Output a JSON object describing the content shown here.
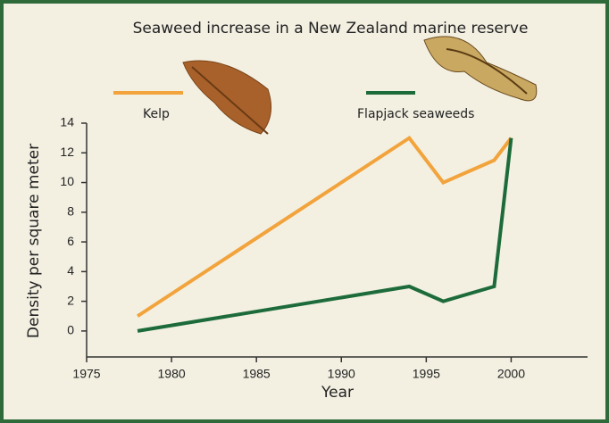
{
  "chart_data": {
    "type": "line",
    "title": "Seaweed increase in a New Zealand marine reserve",
    "x_label": "Year",
    "y_label": "Density per square meter",
    "series": [
      {
        "name": "Kelp",
        "color": "#f2a33c",
        "x": [
          1978,
          1994,
          1996,
          1999,
          2000
        ],
        "values": [
          1,
          13,
          10,
          11.5,
          13
        ]
      },
      {
        "name": "Flapjack seaweeds",
        "color": "#1d6b3a",
        "x": [
          1978,
          1994,
          1996,
          1999,
          2000
        ],
        "values": [
          0,
          3,
          2,
          3,
          13
        ]
      }
    ],
    "xlim": [
      1975,
      2004.5
    ],
    "xticks": [
      1975,
      1980,
      1985,
      1990,
      1995,
      2000
    ],
    "ylim": [
      -1.75,
      14
    ],
    "yticks": [
      0,
      2,
      4,
      6,
      8,
      10,
      12,
      14
    ],
    "legend": "top",
    "grid": false
  }
}
